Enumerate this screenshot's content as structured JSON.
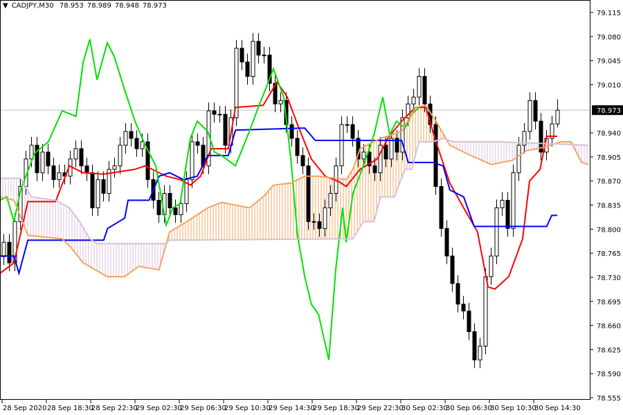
{
  "header": {
    "symbol": "CADJPY,M30",
    "open": "78.953",
    "high": "78.989",
    "low": "78.948",
    "close": "78.973"
  },
  "colors": {
    "background": "#ffffff",
    "bull_candle": "#ffffff",
    "bear_candle": "#000000",
    "tenkan": "#ff0000",
    "kijun": "#0000ff",
    "chikou": "#00e000",
    "senkou_a": "#f4a460",
    "senkou_b": "#d8bfd8",
    "current_price_line": "#c0c0c0"
  },
  "chart_data": {
    "type": "candlestick",
    "title": "CADJPY,M30",
    "ylim": [
      78.555,
      79.115
    ],
    "y_ticks": [
      "79.115",
      "79.080",
      "79.045",
      "79.010",
      "78.940",
      "78.905",
      "78.870",
      "78.835",
      "78.800",
      "78.765",
      "78.730",
      "78.695",
      "78.660",
      "78.625",
      "78.590",
      "78.555"
    ],
    "current_price": "78.973",
    "x_ticks": [
      {
        "bar": 0,
        "label": "28 Sep 2020"
      },
      {
        "bar": 8,
        "label": "28 Sep 18:30"
      },
      {
        "bar": 16,
        "label": "28 Sep 22:30"
      },
      {
        "bar": 24,
        "label": "29 Sep 02:30"
      },
      {
        "bar": 32,
        "label": "29 Sep 06:30"
      },
      {
        "bar": 40,
        "label": "29 Sep 10:30"
      },
      {
        "bar": 48,
        "label": "29 Sep 14:30"
      },
      {
        "bar": 56,
        "label": "29 Sep 18:30"
      },
      {
        "bar": 64,
        "label": "29 Sep 22:30"
      },
      {
        "bar": 72,
        "label": "30 Sep 02:30"
      },
      {
        "bar": 80,
        "label": "30 Sep 06:30"
      },
      {
        "bar": 88,
        "label": "30 Sep 10:30"
      },
      {
        "bar": 96,
        "label": "30 Sep 14:30"
      }
    ],
    "first_open": 78.76,
    "closes": [
      78.781,
      78.751,
      78.811,
      78.862,
      78.902,
      78.922,
      78.882,
      78.912,
      78.892,
      78.872,
      78.882,
      78.877,
      78.902,
      78.917,
      78.892,
      78.882,
      78.831,
      78.872,
      78.852,
      78.887,
      78.892,
      78.922,
      78.942,
      78.932,
      78.917,
      78.927,
      78.872,
      78.842,
      78.821,
      78.852,
      78.831,
      78.821,
      78.837,
      78.872,
      78.927,
      78.922,
      78.892,
      78.972,
      78.967,
      78.967,
      78.922,
      78.962,
      79.063,
      79.043,
      79.022,
      79.073,
      79.053,
      79.053,
      79.012,
      78.982,
      78.987,
      78.952,
      78.932,
      78.907,
      78.892,
      78.811,
      78.811,
      78.801,
      78.831,
      78.852,
      78.892,
      78.952,
      78.952,
      78.932,
      78.902,
      78.912,
      78.892,
      78.882,
      78.922,
      78.902,
      78.932,
      78.912,
      78.962,
      78.982,
      78.992,
      79.022,
      78.982,
      78.952,
      78.862,
      78.801,
      78.761,
      78.721,
      78.691,
      78.681,
      78.651,
      78.61,
      78.63,
      78.731,
      78.761,
      78.831,
      78.842,
      78.801,
      78.882,
      78.922,
      78.942,
      78.987,
      78.957,
      78.912,
      78.932,
      78.953,
      78.973
    ],
    "last_bar": {
      "open": 78.953,
      "high": 78.989,
      "low": 78.948,
      "close": 78.973
    },
    "series": [
      {
        "key": "tenkan",
        "points": [
          [
            -0.6,
            78.736
          ],
          [
            1.9,
            78.751
          ],
          [
            4.4,
            78.84
          ],
          [
            9.4,
            78.84
          ],
          [
            11.9,
            78.892
          ],
          [
            14.4,
            78.882
          ],
          [
            18.1,
            78.88
          ],
          [
            23.75,
            78.887
          ],
          [
            25.6,
            78.892
          ],
          [
            29.4,
            78.877
          ],
          [
            31.9,
            78.872
          ],
          [
            33.75,
            78.864
          ],
          [
            35.6,
            78.877
          ],
          [
            37.5,
            78.917
          ],
          [
            40.6,
            78.917
          ],
          [
            41.9,
            78.977
          ],
          [
            46.9,
            78.98
          ],
          [
            49.4,
            79.014
          ],
          [
            51.25,
            78.992
          ],
          [
            53.1,
            78.952
          ],
          [
            55.6,
            78.902
          ],
          [
            58.1,
            78.877
          ],
          [
            60.6,
            78.869
          ],
          [
            61.9,
            78.862
          ],
          [
            64.4,
            78.887
          ],
          [
            67.5,
            78.902
          ],
          [
            69.4,
            78.932
          ],
          [
            71.9,
            78.957
          ],
          [
            74.4,
            78.977
          ],
          [
            76.25,
            78.977
          ],
          [
            78.1,
            78.927
          ],
          [
            80.6,
            78.867
          ],
          [
            83.1,
            78.831
          ],
          [
            85.6,
            78.796
          ],
          [
            87.5,
            78.716
          ],
          [
            88.75,
            78.713
          ],
          [
            91.25,
            78.731
          ],
          [
            93.75,
            78.786
          ],
          [
            95,
            78.87
          ],
          [
            96.9,
            78.887
          ],
          [
            98.1,
            78.935
          ],
          [
            100,
            78.935
          ]
        ]
      },
      {
        "key": "kijun",
        "points": [
          [
            -0.6,
            78.761
          ],
          [
            1.9,
            78.761
          ],
          [
            2.8,
            78.736
          ],
          [
            4.4,
            78.784
          ],
          [
            18.1,
            78.784
          ],
          [
            18.8,
            78.801
          ],
          [
            21.9,
            78.816
          ],
          [
            22.5,
            78.842
          ],
          [
            26.3,
            78.842
          ],
          [
            28.1,
            78.877
          ],
          [
            30,
            78.882
          ],
          [
            32.5,
            78.872
          ],
          [
            35,
            78.877
          ],
          [
            36.9,
            78.907
          ],
          [
            40.6,
            78.907
          ],
          [
            41.9,
            78.944
          ],
          [
            54.4,
            78.947
          ],
          [
            56.3,
            78.929
          ],
          [
            71.9,
            78.929
          ],
          [
            73.1,
            78.897
          ],
          [
            77.5,
            78.897
          ],
          [
            79.4,
            78.892
          ],
          [
            80.6,
            78.857
          ],
          [
            83.1,
            78.847
          ],
          [
            85,
            78.804
          ],
          [
            98.1,
            78.804
          ],
          [
            99,
            78.82
          ],
          [
            100,
            78.82
          ]
        ]
      },
      {
        "key": "chikou",
        "points": [
          [
            -0.6,
            78.842
          ],
          [
            0.6,
            78.847
          ],
          [
            1.9,
            78.811
          ],
          [
            3.1,
            78.857
          ],
          [
            5.6,
            78.91
          ],
          [
            8.1,
            78.927
          ],
          [
            10.6,
            78.972
          ],
          [
            13.1,
            78.964
          ],
          [
            14.4,
            79.043
          ],
          [
            15.6,
            79.076
          ],
          [
            16.9,
            79.017
          ],
          [
            18.75,
            79.071
          ],
          [
            20,
            79.051
          ],
          [
            21.9,
            79.002
          ],
          [
            23.75,
            78.957
          ],
          [
            25.6,
            78.922
          ],
          [
            27.5,
            78.892
          ],
          [
            29.4,
            78.806
          ],
          [
            30.6,
            78.831
          ],
          [
            31.9,
            78.837
          ],
          [
            33.75,
            78.932
          ],
          [
            35,
            78.957
          ],
          [
            36.9,
            78.942
          ],
          [
            38.1,
            78.912
          ],
          [
            39.4,
            78.907
          ],
          [
            41.9,
            78.892
          ],
          [
            44.4,
            78.942
          ],
          [
            46.25,
            78.982
          ],
          [
            47.5,
            79.007
          ],
          [
            48.75,
            79.033
          ],
          [
            50.6,
            78.992
          ],
          [
            51.9,
            78.902
          ],
          [
            53.1,
            78.791
          ],
          [
            54.4,
            78.731
          ],
          [
            55.6,
            78.691
          ],
          [
            56.9,
            78.676
          ],
          [
            58.75,
            78.61
          ],
          [
            60,
            78.741
          ],
          [
            61.25,
            78.831
          ],
          [
            61.9,
            78.781
          ],
          [
            63.1,
            78.852
          ],
          [
            65,
            78.892
          ],
          [
            66.9,
            78.937
          ],
          [
            68.5,
            78.992
          ],
          [
            69.75,
            78.937
          ],
          [
            71,
            78.957
          ],
          [
            72.5,
            78.947
          ],
          [
            73.75,
            78.967
          ],
          [
            75,
            78.977
          ]
        ]
      },
      {
        "key": "senkou_a",
        "points": [
          [
            -0.6,
            78.847
          ],
          [
            1.9,
            78.842
          ],
          [
            4.4,
            78.791
          ],
          [
            10.6,
            78.786
          ],
          [
            11.9,
            78.776
          ],
          [
            14.4,
            78.751
          ],
          [
            18.75,
            78.731
          ],
          [
            21.9,
            78.731
          ],
          [
            24.4,
            78.746
          ],
          [
            28.1,
            78.741
          ],
          [
            30,
            78.796
          ],
          [
            33.1,
            78.811
          ],
          [
            36.9,
            78.831
          ],
          [
            39.4,
            78.839
          ],
          [
            44.4,
            78.831
          ],
          [
            46.9,
            78.847
          ],
          [
            48.75,
            78.864
          ],
          [
            51.9,
            78.867
          ],
          [
            54.4,
            78.877
          ],
          [
            56.9,
            78.877
          ],
          [
            61.9,
            78.872
          ],
          [
            63.1,
            78.887
          ],
          [
            64.4,
            78.917
          ],
          [
            68.1,
            78.932
          ],
          [
            71.9,
            78.942
          ],
          [
            74.4,
            78.977
          ],
          [
            76.25,
            78.98
          ],
          [
            78.1,
            78.957
          ],
          [
            80.6,
            78.922
          ],
          [
            84.4,
            78.907
          ],
          [
            88.1,
            78.894
          ],
          [
            91.9,
            78.9
          ],
          [
            94.4,
            78.914
          ],
          [
            98.1,
            78.92
          ],
          [
            100.6,
            78.927
          ],
          [
            102.5,
            78.927
          ],
          [
            104.4,
            78.897
          ],
          [
            105.6,
            78.894
          ]
        ]
      },
      {
        "key": "senkou_b",
        "points": [
          [
            -0.6,
            78.874
          ],
          [
            3.1,
            78.874
          ],
          [
            5,
            78.847
          ],
          [
            9.4,
            78.842
          ],
          [
            11.9,
            78.831
          ],
          [
            13.75,
            78.811
          ],
          [
            15.6,
            78.786
          ],
          [
            16.9,
            78.779
          ],
          [
            29.4,
            78.779
          ],
          [
            30,
            78.784
          ],
          [
            63.1,
            78.786
          ],
          [
            65,
            78.811
          ],
          [
            66.9,
            78.811
          ],
          [
            68.1,
            78.847
          ],
          [
            70.6,
            78.847
          ],
          [
            72.5,
            78.887
          ],
          [
            73.75,
            78.887
          ],
          [
            75,
            78.927
          ],
          [
            77.5,
            78.927
          ],
          [
            79.4,
            78.932
          ],
          [
            81.25,
            78.927
          ],
          [
            89.4,
            78.927
          ],
          [
            105.6,
            78.922
          ]
        ]
      }
    ]
  }
}
